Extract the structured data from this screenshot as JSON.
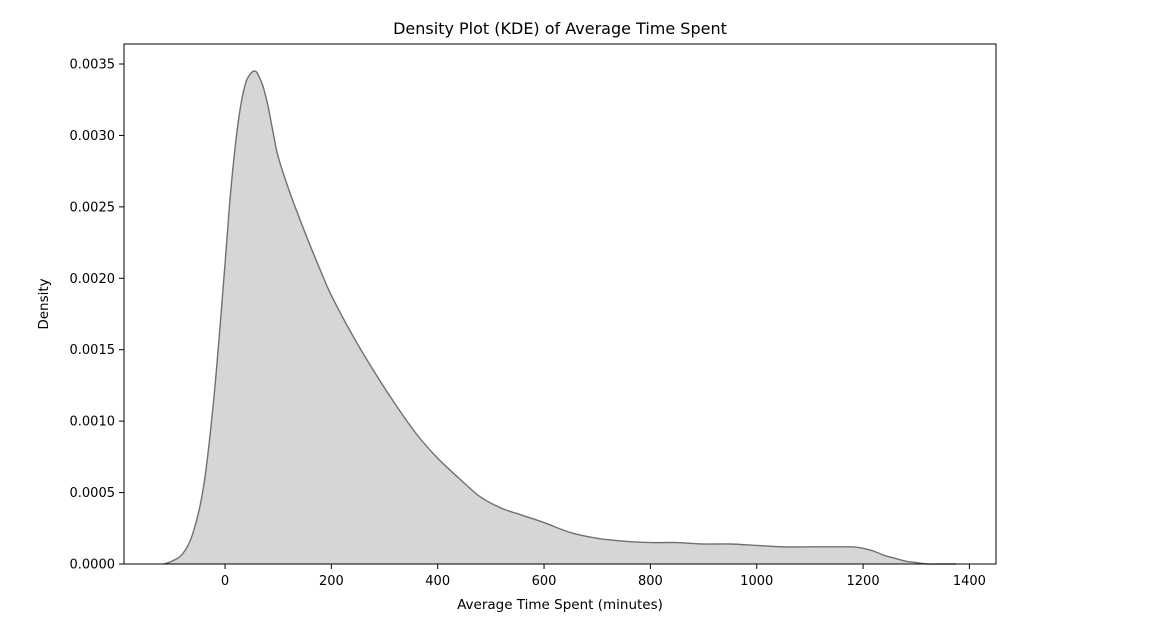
{
  "chart_data": {
    "type": "area",
    "title": "Density Plot (KDE) of Average Time Spent",
    "xlabel": "Average Time Spent (minutes)",
    "ylabel": "Density",
    "xlim": [
      -190,
      1450
    ],
    "ylim": [
      0,
      0.00364
    ],
    "xticks": [
      0,
      200,
      400,
      600,
      800,
      1000,
      1200,
      1400
    ],
    "xtick_labels": [
      "0",
      "200",
      "400",
      "600",
      "800",
      "1000",
      "1200",
      "1400"
    ],
    "yticks": [
      0,
      0.0005,
      0.001,
      0.0015,
      0.002,
      0.0025,
      0.003,
      0.0035
    ],
    "ytick_labels": [
      "0.0000",
      "0.0005",
      "0.0010",
      "0.0015",
      "0.0020",
      "0.0025",
      "0.0030",
      "0.0035"
    ],
    "grid": false,
    "legend": "none",
    "fill_color": "#d6d6d6",
    "line_color": "#707070",
    "series": [
      {
        "x": [
          -115,
          -100,
          -80,
          -60,
          -40,
          -20,
          0,
          10,
          20,
          30,
          40,
          50,
          55,
          60,
          70,
          80,
          90,
          100,
          120,
          140,
          160,
          180,
          200,
          240,
          280,
          320,
          360,
          400,
          440,
          480,
          520,
          560,
          600,
          650,
          700,
          750,
          800,
          850,
          900,
          950,
          1000,
          1050,
          1100,
          1150,
          1180,
          1200,
          1220,
          1240,
          1260,
          1280,
          1300,
          1320,
          1340,
          1375
        ],
        "y": [
          0.0,
          2e-05,
          7e-05,
          0.00022,
          0.00055,
          0.0012,
          0.0021,
          0.00258,
          0.00295,
          0.00322,
          0.00338,
          0.00344,
          0.00345,
          0.00344,
          0.00336,
          0.00322,
          0.00303,
          0.00285,
          0.00262,
          0.00242,
          0.00223,
          0.00205,
          0.00188,
          0.0016,
          0.00135,
          0.00112,
          0.00091,
          0.00074,
          0.0006,
          0.00047,
          0.00039,
          0.00034,
          0.00029,
          0.00022,
          0.00018,
          0.00016,
          0.00015,
          0.00015,
          0.00014,
          0.00014,
          0.00013,
          0.00012,
          0.00012,
          0.00012,
          0.00012,
          0.00011,
          9e-05,
          6e-05,
          4e-05,
          2e-05,
          1e-05,
          0.0,
          0.0,
          0.0
        ]
      }
    ]
  }
}
